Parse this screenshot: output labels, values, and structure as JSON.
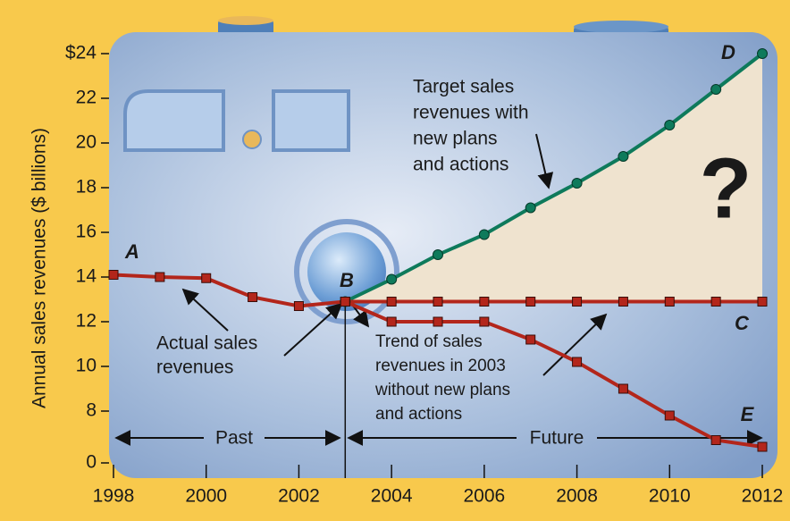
{
  "chart_data": {
    "type": "line",
    "y_label": "Annual sales revenues ($ billions)",
    "xlim": [
      1998,
      2012
    ],
    "xticks": [
      1998,
      2000,
      2002,
      2004,
      2006,
      2008,
      2010,
      2012
    ],
    "ylim": [
      5.8,
      24
    ],
    "yticks": [
      {
        "value": 0,
        "label": "0"
      },
      8,
      10,
      12,
      14,
      16,
      18,
      20,
      22,
      {
        "value": 24,
        "label": "$24"
      }
    ],
    "axis_break": true,
    "series": [
      {
        "color": "#b3261b",
        "marker": "square",
        "x": [
          1998,
          1999,
          2000,
          2001,
          2002,
          2003
        ],
        "values": [
          14.1,
          14.0,
          13.95,
          13.1,
          12.7,
          12.9
        ]
      },
      {
        "color": "#0e7a5b",
        "marker": "circle",
        "fill": "#efe3cf",
        "x": [
          2003,
          2004,
          2005,
          2006,
          2007,
          2008,
          2009,
          2010,
          2011,
          2012
        ],
        "values": [
          12.9,
          13.9,
          15.0,
          15.9,
          17.1,
          18.2,
          19.4,
          20.8,
          22.4,
          24.0
        ]
      },
      {
        "color": "#b3261b",
        "marker": "square",
        "x": [
          2003,
          2004,
          2005,
          2006,
          2007,
          2008,
          2009,
          2010,
          2011,
          2012
        ],
        "values": [
          12.9,
          12.9,
          12.9,
          12.9,
          12.9,
          12.9,
          12.9,
          12.9,
          12.9,
          12.9
        ]
      },
      {
        "color": "#b3261b",
        "marker": "square",
        "x": [
          2003,
          2004,
          2005,
          2006,
          2007,
          2008,
          2009,
          2010,
          2011,
          2012
        ],
        "values": [
          12.9,
          12.0,
          12.0,
          12.0,
          11.2,
          10.2,
          9.0,
          7.8,
          6.7,
          6.4
        ]
      }
    ],
    "point_labels": [
      "A",
      "B",
      "C",
      "D",
      "E",
      "?"
    ],
    "annotations": [
      {
        "lines": [
          "Target sales",
          "revenues with",
          "new plans",
          "and actions"
        ]
      },
      {
        "lines": [
          "Actual sales",
          "revenues"
        ]
      },
      {
        "lines": [
          "Trend of sales",
          "revenues in 2003",
          "without new plans",
          "and actions"
        ]
      },
      {
        "lines": [
          "Past"
        ]
      },
      {
        "lines": [
          "Future"
        ]
      }
    ]
  }
}
